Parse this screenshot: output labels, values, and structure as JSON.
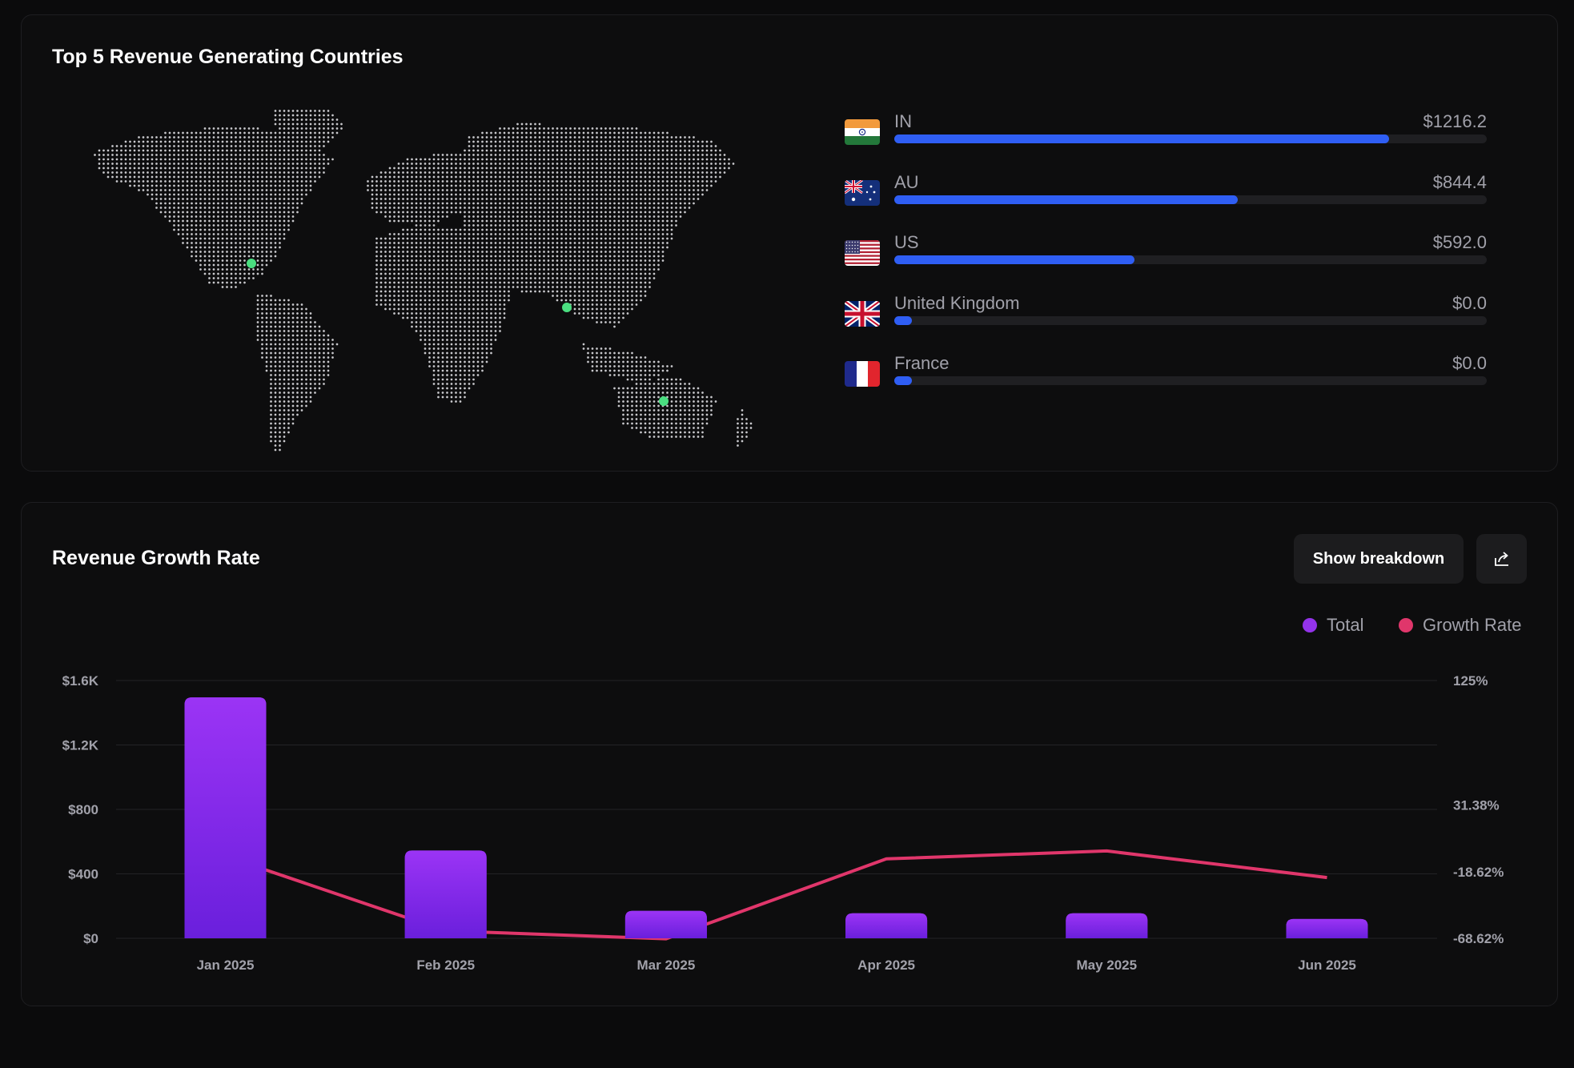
{
  "countries_card": {
    "title": "Top 5 Revenue Generating Countries",
    "map_icon": "world-dot-map",
    "markers": [
      "US",
      "IN",
      "AU"
    ],
    "marker_color": "#4ade80",
    "countries": [
      {
        "code": "IN",
        "name": "IN",
        "value": "$1216.2",
        "fraction": 0.835,
        "flag": "india-flag-icon"
      },
      {
        "code": "AU",
        "name": "AU",
        "value": "$844.4",
        "fraction": 0.58,
        "flag": "australia-flag-icon"
      },
      {
        "code": "US",
        "name": "US",
        "value": "$592.0",
        "fraction": 0.405,
        "flag": "usa-flag-icon"
      },
      {
        "code": "GB",
        "name": "United Kingdom",
        "value": "$0.0",
        "fraction": 0.03,
        "flag": "uk-flag-icon"
      },
      {
        "code": "FR",
        "name": "France",
        "value": "$0.0",
        "fraction": 0.03,
        "flag": "france-flag-icon"
      }
    ],
    "bar_color": "#2f5ef4"
  },
  "growth_card": {
    "title": "Revenue Growth Rate",
    "breakdown_label": "Show breakdown",
    "share_icon": "share-icon",
    "legend": [
      {
        "label": "Total",
        "color": "#9333ea"
      },
      {
        "label": "Growth Rate",
        "color": "#e0366b"
      }
    ]
  },
  "chart_data": {
    "type": "bar",
    "title": "Revenue Growth Rate",
    "categories": [
      "Jan 2025",
      "Feb 2025",
      "Mar 2025",
      "Apr 2025",
      "May 2025",
      "Jun 2025"
    ],
    "series": [
      {
        "name": "Total",
        "type": "bar",
        "axis": "left",
        "values": [
          1495,
          545,
          170,
          155,
          155,
          120
        ]
      },
      {
        "name": "Growth Rate",
        "type": "line",
        "axis": "right",
        "values": [
          -7,
          -63,
          -69,
          -9,
          -3,
          -23
        ]
      }
    ],
    "left_axis": {
      "ticks": [
        "$0",
        "$400",
        "$800",
        "$1.2K",
        "$1.6K"
      ],
      "tick_values": [
        0,
        400,
        800,
        1200,
        1600
      ],
      "range": [
        0,
        1600
      ]
    },
    "right_axis": {
      "ticks": [
        "-68.62%",
        "-18.62%",
        "31.38%",
        "125%"
      ],
      "tick_values": [
        -68.62,
        -18.62,
        31.38,
        125
      ],
      "range": [
        -68.62,
        125
      ]
    },
    "grid": true
  }
}
